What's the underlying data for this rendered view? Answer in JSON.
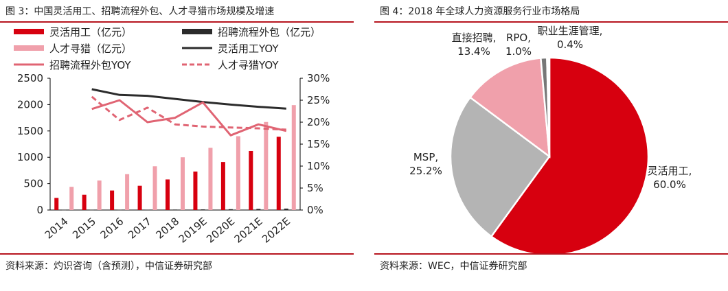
{
  "left": {
    "title": "图 3：中国灵活用工、招聘流程外包、人才寻猎市场规模及增速",
    "source": "资料来源：灼识咨询（含预测），中信证券研究部"
  },
  "right": {
    "title": "图 4：2018 年全球人力资源服务行业市场格局",
    "source": "资料来源：WEC，中信证券研究部"
  },
  "colors": {
    "flex": "#d7000f",
    "rpo": "#2b2b2b",
    "hunt": "#f0a0ab",
    "flex_yoy": "#2b2b2b",
    "rpo_yoy": "#e06473",
    "hunt_yoy": "#e06473",
    "pie_flex": "#d7000f",
    "pie_msp": "#b4b4b4",
    "pie_direct": "#f0a0ab",
    "pie_rpo": "#777777",
    "pie_career": "#ffffff",
    "rule": "#b7141e"
  },
  "chart_data": [
    {
      "type": "bar",
      "categories": [
        "2014",
        "2015",
        "2016",
        "2017",
        "2018",
        "2019E",
        "2020E",
        "2021E",
        "2022E"
      ],
      "ylim": [
        0,
        2500
      ],
      "yticks": [
        0,
        500,
        1000,
        1500,
        2000,
        2500
      ],
      "y2lim": [
        0,
        30
      ],
      "y2ticks": [
        "0%",
        "5%",
        "10%",
        "15%",
        "20%",
        "25%",
        "30%"
      ],
      "legend": [
        {
          "key": "flex",
          "label": "灵活用工（亿元）",
          "kind": "bar"
        },
        {
          "key": "rpo",
          "label": "招聘流程外包（亿元）",
          "kind": "bar"
        },
        {
          "key": "hunt",
          "label": "人才寻猎（亿元）",
          "kind": "bar"
        },
        {
          "key": "flex_yoy",
          "label": "灵活用工YOY",
          "kind": "line"
        },
        {
          "key": "rpo_yoy",
          "label": "招聘流程外包YOY",
          "kind": "line"
        },
        {
          "key": "hunt_yoy",
          "label": "人才寻猎YOY",
          "kind": "dash"
        }
      ],
      "series": [
        {
          "key": "flex",
          "axis": "left",
          "kind": "bar",
          "values": [
            230,
            290,
            370,
            460,
            580,
            730,
            910,
            1120,
            1390
          ]
        },
        {
          "key": "rpo",
          "axis": "left",
          "kind": "bar",
          "values": [
            3,
            4,
            5,
            7,
            9,
            12,
            16,
            21,
            27
          ]
        },
        {
          "key": "hunt",
          "axis": "left",
          "kind": "bar",
          "values": [
            440,
            560,
            680,
            830,
            1000,
            1180,
            1400,
            1670,
            1990
          ]
        },
        {
          "key": "flex_yoy",
          "axis": "right",
          "kind": "line",
          "values": [
            null,
            27.5,
            26.2,
            26.0,
            25.3,
            24.6,
            24.0,
            23.5,
            23.1
          ]
        },
        {
          "key": "rpo_yoy",
          "axis": "right",
          "kind": "line",
          "values": [
            null,
            23.0,
            25.0,
            20.0,
            21.0,
            24.5,
            17.0,
            19.5,
            18.0
          ]
        },
        {
          "key": "hunt_yoy",
          "axis": "right",
          "kind": "dash",
          "values": [
            null,
            25.8,
            20.5,
            23.3,
            19.5,
            19.0,
            18.8,
            18.6,
            18.3
          ]
        }
      ]
    },
    {
      "type": "pie",
      "slices": [
        {
          "key": "pie_flex",
          "name": "灵活用工,",
          "value": 60.0,
          "label": "60.0%"
        },
        {
          "key": "pie_msp",
          "name": "MSP,",
          "value": 25.2,
          "label": "25.2%"
        },
        {
          "key": "pie_direct",
          "name": "直接招聘,",
          "value": 13.4,
          "label": "13.4%"
        },
        {
          "key": "pie_rpo",
          "name": "RPO,",
          "value": 1.0,
          "label": "1.0%"
        },
        {
          "key": "pie_career",
          "name": "职业生涯管理,",
          "value": 0.4,
          "label": "0.4%"
        }
      ]
    }
  ]
}
